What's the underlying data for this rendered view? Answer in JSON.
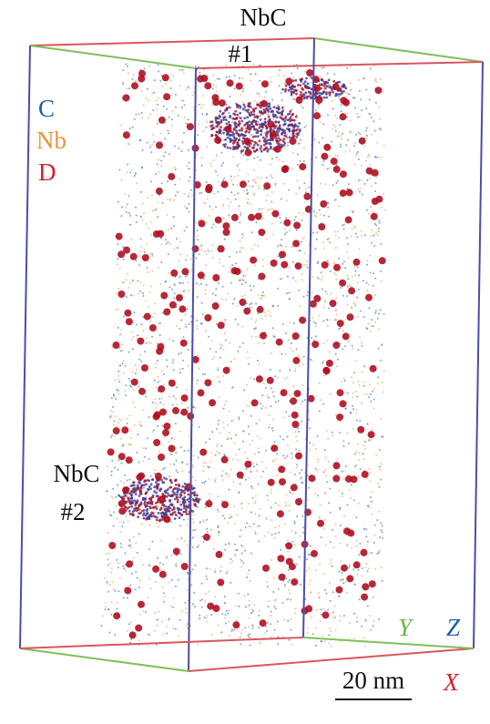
{
  "clusters": [
    {
      "name": "NbC",
      "number": "#1"
    },
    {
      "name": "NbC",
      "number": "#2"
    }
  ],
  "legend": [
    {
      "text": "C",
      "color": "#1f5fa8"
    },
    {
      "text": "Nb",
      "color": "#e8963a"
    },
    {
      "text": "D",
      "color": "#d4202a"
    }
  ],
  "axes": [
    {
      "text": "Y",
      "color": "#6cb33f"
    },
    {
      "text": "Z",
      "color": "#1f5fa8"
    },
    {
      "text": "X",
      "color": "#d4202a"
    }
  ],
  "scale_bar": "20 nm"
}
